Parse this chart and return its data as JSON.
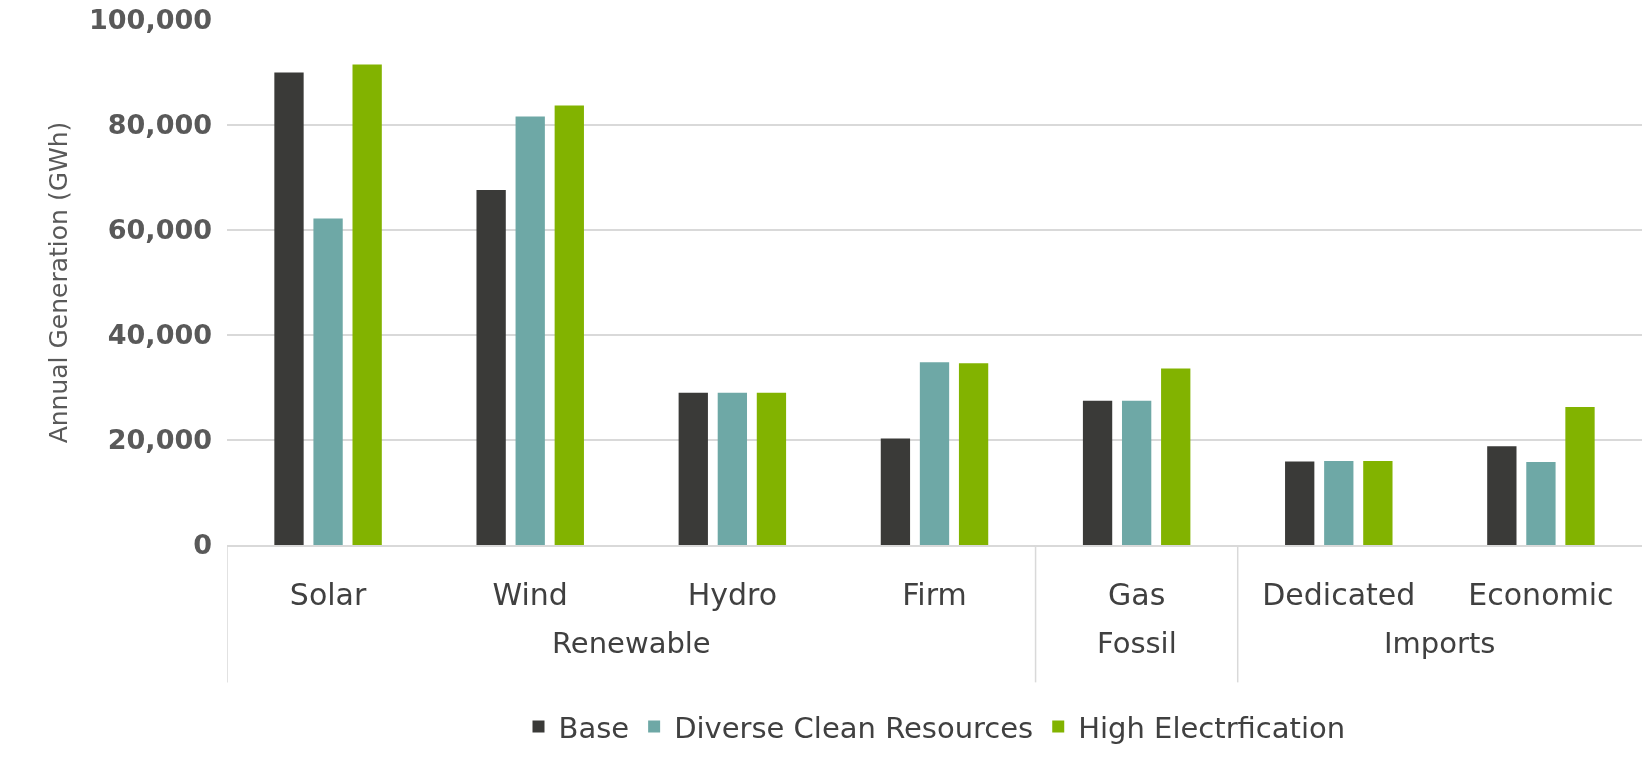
{
  "chart_data": {
    "type": "bar",
    "ylabel": "Annual Generation (GWh)",
    "categories": [
      "Solar",
      "Wind",
      "Hydro",
      "Firm",
      "Gas",
      "Dedicated",
      "Economic"
    ],
    "series": [
      {
        "name": "Base",
        "color": "#3a3a38",
        "values": [
          90000,
          67600,
          29000,
          20300,
          27500,
          15900,
          18800
        ]
      },
      {
        "name": "Diverse Clean Resources",
        "color": "#6ea8a6",
        "values": [
          62200,
          81600,
          29000,
          34800,
          27500,
          16000,
          15800
        ]
      },
      {
        "name": "High Electrfication",
        "color": "#82b300",
        "values": [
          91500,
          83700,
          29000,
          34600,
          33600,
          16000,
          26300
        ]
      }
    ],
    "annotations": [
      "Renewable",
      "Fossil",
      "Imports"
    ],
    "ylim": [
      0,
      100000
    ],
    "yticks": [
      {
        "value": 0,
        "label": "0"
      },
      {
        "value": 20000,
        "label": "20,000"
      },
      {
        "value": 40000,
        "label": "40,000"
      },
      {
        "value": 60000,
        "label": "60,000"
      },
      {
        "value": 80000,
        "label": "80,000"
      },
      {
        "value": 100000,
        "label": "100,000"
      }
    ],
    "grid": "y",
    "legend": "bottom"
  }
}
